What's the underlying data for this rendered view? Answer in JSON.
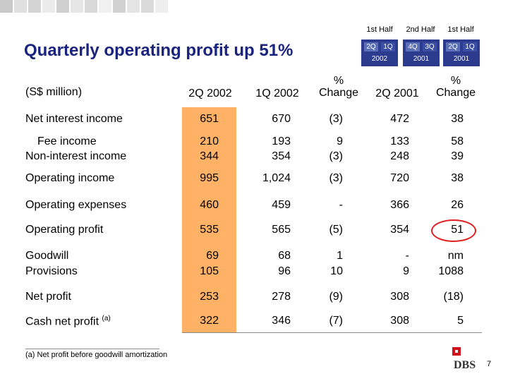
{
  "title": "Quarterly operating profit up 51%",
  "unit_label": "(S$ million)",
  "period_headers": [
    {
      "label": "1st Half",
      "q1": "2Q",
      "q2": "1Q",
      "year": "2002"
    },
    {
      "label": "2nd Half",
      "q1": "4Q",
      "q2": "3Q",
      "year": "2001"
    },
    {
      "label": "1st Half",
      "q1": "2Q",
      "q2": "1Q",
      "year": "2001"
    }
  ],
  "columns": [
    "2Q 2002",
    "1Q 2002",
    "%",
    "Change",
    "2Q 2001",
    "%",
    "Change"
  ],
  "rows": {
    "net_interest": {
      "label": "Net interest income",
      "v": [
        "651",
        "670",
        "(3)",
        "472",
        "38"
      ]
    },
    "fee": {
      "label": "Fee income",
      "v": [
        "210",
        "193",
        "9",
        "133",
        "58"
      ]
    },
    "nonint": {
      "label": "Non-interest income",
      "v": [
        "344",
        "354",
        "(3)",
        "248",
        "39"
      ]
    },
    "opinc": {
      "label": "Operating income",
      "v": [
        "995",
        "1,024",
        "(3)",
        "720",
        "38"
      ]
    },
    "opexp": {
      "label": "Operating expenses",
      "v": [
        "460",
        "459",
        "-",
        "366",
        "26"
      ]
    },
    "opprofit": {
      "label": "Operating profit",
      "v": [
        "535",
        "565",
        "(5)",
        "354",
        "51"
      ]
    },
    "goodwill": {
      "label": "Goodwill",
      "v": [
        "69",
        "68",
        "1",
        "-",
        "nm"
      ]
    },
    "provisions": {
      "label": "Provisions",
      "v": [
        "105",
        "96",
        "10",
        "9",
        "1088"
      ]
    },
    "netprofit": {
      "label": "Net profit",
      "v": [
        "253",
        "278",
        "(9)",
        "308",
        "(18)"
      ]
    },
    "cashnet": {
      "label": "Cash net profit",
      "sup": "(a)",
      "v": [
        "322",
        "346",
        "(7)",
        "308",
        "5"
      ]
    }
  },
  "footnote": "(a) Net profit before goodwill amortization",
  "logo_text": "DBS",
  "page_number": "7",
  "colors": {
    "title": "#1a237e",
    "header_box": "#2d3b8f",
    "highlight": "#ffb266",
    "circle": "#e02020",
    "logo_red": "#d0101a"
  },
  "decor_square_colors": [
    "#c9c9c9",
    "#e0e0e0",
    "#d4d4d4",
    "#ebebeb",
    "#cfcfcf",
    "#e6e6e6",
    "#d9d9d9",
    "#f0f0f0",
    "#d1d1d1",
    "#e4e4e4",
    "#dadada",
    "#eeeeee"
  ]
}
